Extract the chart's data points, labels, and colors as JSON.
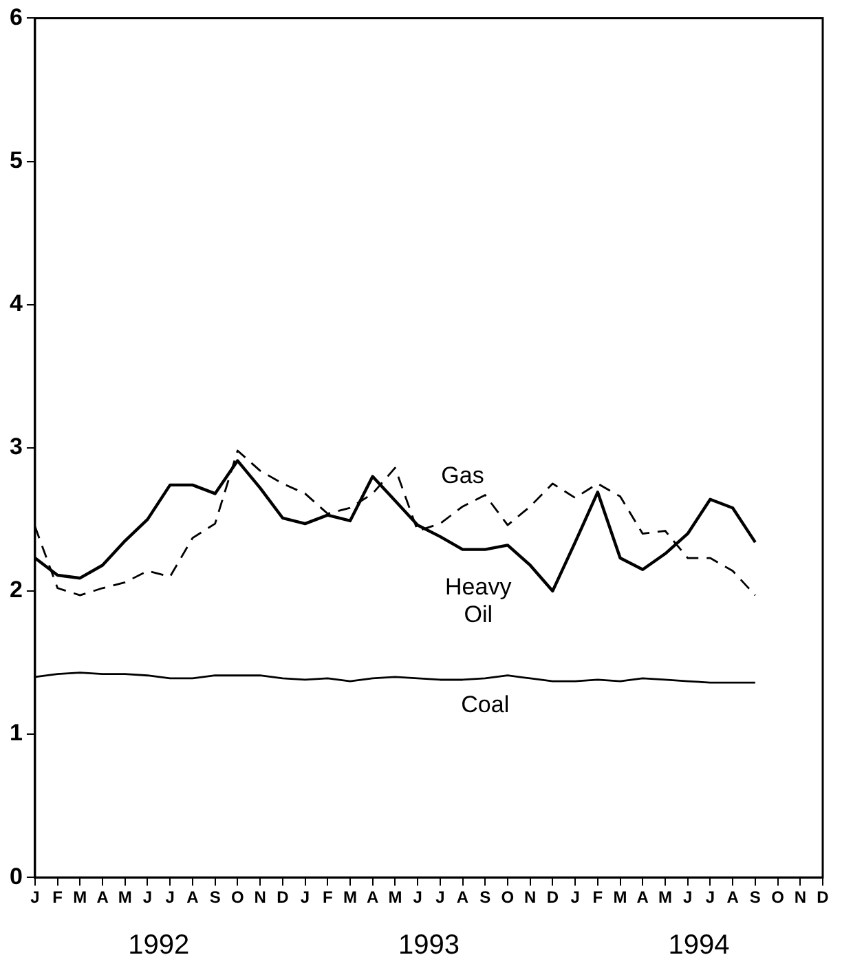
{
  "chart_data": {
    "type": "line",
    "categories": [
      "J",
      "F",
      "M",
      "A",
      "M",
      "J",
      "J",
      "A",
      "S",
      "O",
      "N",
      "D",
      "J",
      "F",
      "M",
      "A",
      "M",
      "J",
      "J",
      "A",
      "S",
      "O",
      "N",
      "D",
      "J",
      "F",
      "M",
      "A",
      "M",
      "J",
      "J",
      "A",
      "S",
      "O",
      "N",
      "D"
    ],
    "series": [
      {
        "name": "Gas",
        "color": "#000000",
        "line_style": "dashed",
        "values": [
          2.45,
          2.02,
          1.97,
          2.02,
          2.06,
          2.14,
          2.1,
          2.37,
          2.47,
          2.98,
          2.84,
          2.75,
          2.68,
          2.54,
          2.58,
          2.68,
          2.86,
          2.42,
          2.47,
          2.59,
          2.67,
          2.46,
          2.59,
          2.75,
          2.65,
          2.75,
          2.66,
          2.4,
          2.42,
          2.23,
          2.23,
          2.14,
          1.97,
          null,
          null,
          null
        ]
      },
      {
        "name": "Heavy Oil",
        "color": "#000000",
        "line_style": "solid",
        "values": [
          2.23,
          2.11,
          2.09,
          2.18,
          2.35,
          2.5,
          2.74,
          2.74,
          2.68,
          2.91,
          2.72,
          2.51,
          2.47,
          2.53,
          2.49,
          2.8,
          2.63,
          2.46,
          2.38,
          2.29,
          2.29,
          2.32,
          2.18,
          2.0,
          2.34,
          2.69,
          2.23,
          2.15,
          2.26,
          2.4,
          2.64,
          2.58,
          2.34,
          null,
          null,
          null
        ]
      },
      {
        "name": "Coal",
        "color": "#000000",
        "line_style": "solid",
        "values": [
          1.4,
          1.42,
          1.43,
          1.42,
          1.42,
          1.41,
          1.39,
          1.39,
          1.41,
          1.41,
          1.41,
          1.39,
          1.38,
          1.39,
          1.37,
          1.39,
          1.4,
          1.39,
          1.38,
          1.38,
          1.39,
          1.41,
          1.39,
          1.37,
          1.37,
          1.38,
          1.37,
          1.39,
          1.38,
          1.37,
          1.36,
          1.36,
          1.36,
          null,
          null,
          null
        ]
      }
    ],
    "ylim": [
      0,
      6
    ],
    "yticks": [
      0,
      1,
      2,
      3,
      4,
      5,
      6
    ],
    "annotations": [
      "1992",
      "1993",
      "1994"
    ],
    "grid": false,
    "legend": false,
    "marker": "none"
  }
}
